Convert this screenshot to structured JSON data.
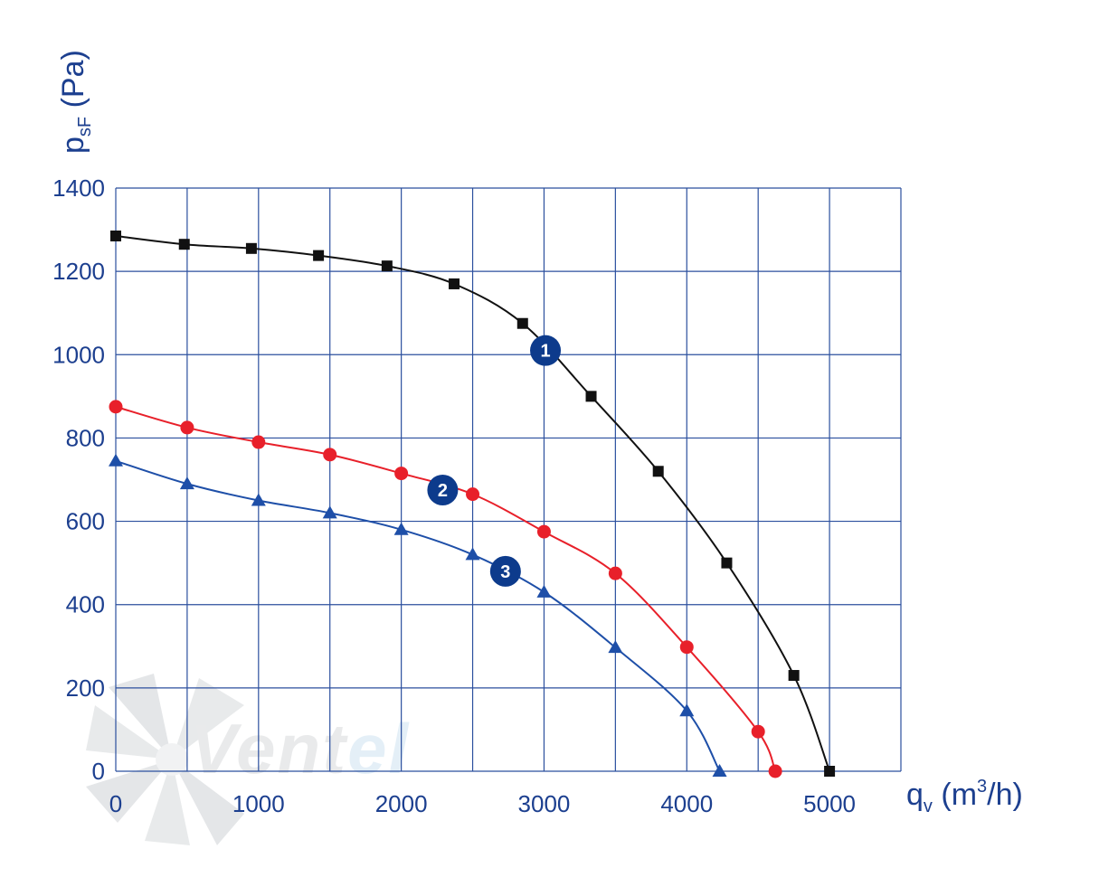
{
  "chart_data": {
    "type": "line",
    "xlabel": "q",
    "xlabel_sub": "v",
    "xlabel_units_pre": " (m",
    "xlabel_units_sup": "3",
    "xlabel_units_post": "/h)",
    "ylabel": "p",
    "ylabel_sub": "sF",
    "ylabel_units": " (Pa)",
    "xlim": [
      0,
      5500
    ],
    "ylim": [
      0,
      1400
    ],
    "xticks": [
      0,
      1000,
      2000,
      3000,
      4000,
      5000
    ],
    "xtick_labels": [
      "0",
      "1000",
      "2000",
      "3000",
      "4000",
      "5000"
    ],
    "yticks": [
      0,
      200,
      400,
      600,
      800,
      1000,
      1200,
      1400
    ],
    "ytick_labels": [
      "0",
      "200",
      "400",
      "600",
      "800",
      "1000",
      "1200",
      "1400"
    ],
    "grid": true,
    "grid_color": "#2b4f9e",
    "axis_text_color": "#1c3f8f",
    "series": [
      {
        "label": "1",
        "color": "#111111",
        "marker": "square",
        "label_at": [
          3010,
          1010
        ],
        "x": [
          0,
          480,
          950,
          1420,
          1900,
          2370,
          2850,
          3330,
          3800,
          4280,
          4750,
          5000
        ],
        "y": [
          1285,
          1265,
          1255,
          1238,
          1213,
          1170,
          1075,
          900,
          720,
          500,
          230,
          0
        ]
      },
      {
        "label": "2",
        "color": "#e8202a",
        "marker": "circle",
        "label_at": [
          2290,
          675
        ],
        "x": [
          0,
          500,
          1000,
          1500,
          2000,
          2500,
          3000,
          3500,
          4000,
          4500,
          4620
        ],
        "y": [
          875,
          825,
          790,
          760,
          715,
          665,
          575,
          475,
          298,
          95,
          0
        ]
      },
      {
        "label": "3",
        "color": "#1e4fa8",
        "marker": "triangle",
        "label_at": [
          2730,
          480
        ],
        "x": [
          0,
          500,
          1000,
          1500,
          2000,
          2500,
          3000,
          3500,
          4000,
          4230
        ],
        "y": [
          745,
          690,
          650,
          620,
          580,
          520,
          430,
          297,
          145,
          0
        ]
      }
    ],
    "badge_color": "#0d3b8c"
  },
  "watermark": {
    "text_main": "Vent",
    "text_accent": "el"
  }
}
